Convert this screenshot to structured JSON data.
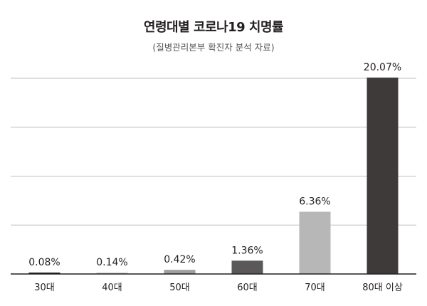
{
  "chart_data": {
    "type": "bar",
    "title": "연령대별 코로나19 치명률",
    "subtitle": "(질병관리본부 확진자 분석 자료)",
    "categories": [
      "30대",
      "40대",
      "50대",
      "60대",
      "70대",
      "80대 이상"
    ],
    "values": [
      0.08,
      0.14,
      0.42,
      1.36,
      6.36,
      20.07
    ],
    "value_labels": [
      "0.08%",
      "0.14%",
      "0.42%",
      "1.36%",
      "6.36%",
      "20.07%"
    ],
    "bar_colors": [
      "#231f20",
      "#c9c9c9",
      "#9e9e9e",
      "#5a5858",
      "#b7b7b7",
      "#3e3a39"
    ],
    "ylim": [
      0,
      20
    ],
    "grid": true,
    "xlabel": "",
    "ylabel": ""
  }
}
